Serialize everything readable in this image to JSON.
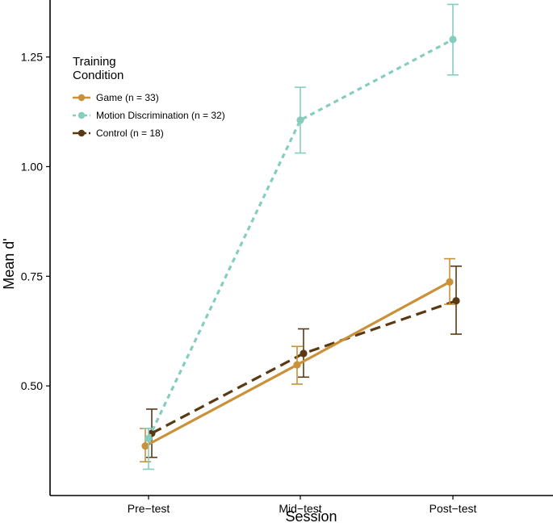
{
  "chart_data": {
    "type": "line",
    "title": "",
    "xlabel": "Session",
    "ylabel": "Mean d'",
    "categories": [
      "Pre−test",
      "Mid−test",
      "Post−test"
    ],
    "ylim": [
      0.25,
      1.38
    ],
    "yticks": [
      0.5,
      0.75,
      1.0,
      1.25
    ],
    "ytick_labels": [
      "0.50",
      "0.75",
      "1.00",
      "1.25"
    ],
    "grid": false,
    "legend": {
      "title_lines": [
        "Training",
        "Condition"
      ],
      "placement": "top-left"
    },
    "series": [
      {
        "name": "Game (n = 33)",
        "color": "#C8913A",
        "dash": "solid",
        "values": [
          0.363,
          0.548,
          0.737
        ],
        "err_low": [
          0.327,
          0.504,
          0.686
        ],
        "err_high": [
          0.403,
          0.59,
          0.79
        ]
      },
      {
        "name": "Motion Discrimination (n = 32)",
        "color": "#85CDBF",
        "dash": "dotted",
        "values": [
          0.38,
          1.106,
          1.29
        ],
        "err_low": [
          0.31,
          1.031,
          1.209
        ],
        "err_high": [
          0.403,
          1.181,
          1.37
        ]
      },
      {
        "name": "Control (n = 18)",
        "color": "#5A3A14",
        "dash": "dashed",
        "values": [
          0.392,
          0.574,
          0.694
        ],
        "err_low": [
          0.337,
          0.52,
          0.618
        ],
        "err_high": [
          0.447,
          0.63,
          0.773
        ]
      }
    ]
  }
}
